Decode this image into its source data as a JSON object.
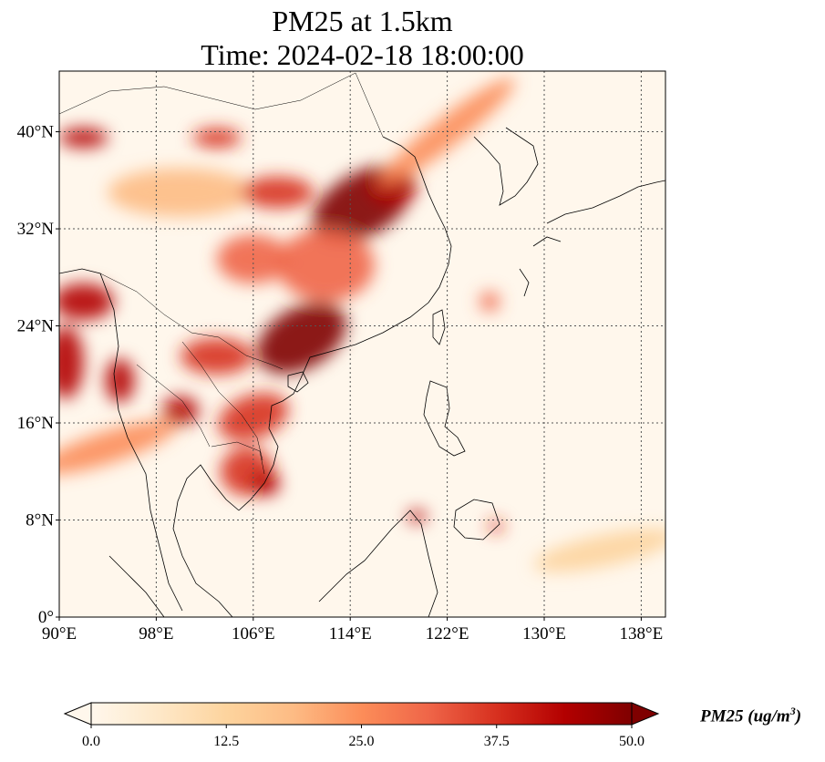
{
  "title": {
    "line1": "PM25 at 1.5km",
    "line2": "Time: 2024-02-18 18:00:00"
  },
  "map": {
    "extent": {
      "lon_min": 90,
      "lon_max": 140,
      "lat_min": 0,
      "lat_max": 45
    },
    "lon_ticks": [
      {
        "value": 90,
        "label": "90°E"
      },
      {
        "value": 98,
        "label": "98°E"
      },
      {
        "value": 106,
        "label": "106°E"
      },
      {
        "value": 114,
        "label": "114°E"
      },
      {
        "value": 122,
        "label": "122°E"
      },
      {
        "value": 130,
        "label": "130°E"
      },
      {
        "value": 138,
        "label": "138°E"
      }
    ],
    "lat_ticks": [
      {
        "value": 0,
        "label": "0°"
      },
      {
        "value": 8,
        "label": "8°N"
      },
      {
        "value": 16,
        "label": "16°N"
      },
      {
        "value": 24,
        "label": "24°N"
      },
      {
        "value": 32,
        "label": "32°N"
      },
      {
        "value": 40,
        "label": "40°N"
      }
    ],
    "gridlines": true
  },
  "colorbar": {
    "colormap": "OrRd",
    "colors": [
      "#fff7ec",
      "#fee8c8",
      "#fdd49e",
      "#fdbb84",
      "#fc8d59",
      "#ef6548",
      "#d7301f",
      "#b30000",
      "#7f0000"
    ],
    "ticks": [
      {
        "value": 0,
        "label": "0.0"
      },
      {
        "value": 12.5,
        "label": "12.5"
      },
      {
        "value": 25,
        "label": "25.0"
      },
      {
        "value": 37.5,
        "label": "37.5"
      },
      {
        "value": 50,
        "label": "50.0"
      }
    ],
    "min": 0,
    "max": 50,
    "extend": "both",
    "label_main": "PM25 (ug/m",
    "label_sup": "3",
    "label_end": ")"
  },
  "plumes": [
    {
      "name": "north-china-plain",
      "lon": 115,
      "lat": 34,
      "rlon": 4.5,
      "rlat": 2.6,
      "value": 48,
      "rot": -30
    },
    {
      "name": "shandong",
      "lon": 117.5,
      "lat": 35.5,
      "rlon": 2,
      "rlat": 1.5,
      "value": 45,
      "rot": 0
    },
    {
      "name": "sichuan-basin",
      "lon": 106,
      "lat": 29.5,
      "rlon": 3,
      "rlat": 2,
      "value": 30,
      "rot": 0
    },
    {
      "name": "central-china",
      "lon": 112,
      "lat": 29,
      "rlon": 4,
      "rlat": 3,
      "value": 32,
      "rot": 0
    },
    {
      "name": "guangxi-guangdong",
      "lon": 110,
      "lat": 23,
      "rlon": 4,
      "rlat": 2.5,
      "value": 47,
      "rot": -30
    },
    {
      "name": "yunnan-laos",
      "lon": 103,
      "lat": 21.5,
      "rlon": 3,
      "rlat": 1.5,
      "value": 38,
      "rot": 0
    },
    {
      "name": "myanmar-north",
      "lon": 92,
      "lat": 26,
      "rlon": 2.5,
      "rlat": 1.5,
      "value": 44,
      "rot": 0
    },
    {
      "name": "myanmar-west",
      "lon": 90.5,
      "lat": 21,
      "rlon": 1.5,
      "rlat": 3,
      "value": 42,
      "rot": 0
    },
    {
      "name": "myanmar-central",
      "lon": 95,
      "lat": 19.5,
      "rlon": 1.2,
      "rlat": 1.8,
      "value": 45,
      "rot": 0
    },
    {
      "name": "laos-vietnam",
      "lon": 106,
      "lat": 16.5,
      "rlon": 3,
      "rlat": 1.8,
      "value": 40,
      "rot": -20
    },
    {
      "name": "thailand-east",
      "lon": 100,
      "lat": 17,
      "rlon": 1.5,
      "rlat": 1.2,
      "value": 44,
      "rot": 0
    },
    {
      "name": "cambodia",
      "lon": 105.5,
      "lat": 12,
      "rlon": 2.2,
      "rlat": 2,
      "value": 36,
      "rot": 0
    },
    {
      "name": "mekong-delta",
      "lon": 107,
      "lat": 11,
      "rlon": 1.2,
      "rlat": 1,
      "value": 46,
      "rot": 0
    },
    {
      "name": "gobi-west",
      "lon": 92,
      "lat": 39.5,
      "rlon": 2,
      "rlat": 0.8,
      "value": 45,
      "rot": 0
    },
    {
      "name": "inner-mongolia",
      "lon": 103,
      "lat": 39.5,
      "rlon": 2,
      "rlat": 0.8,
      "value": 40,
      "rot": 0
    },
    {
      "name": "north-arc",
      "lon": 100,
      "lat": 35,
      "rlon": 6,
      "rlat": 2,
      "value": 18,
      "rot": 0
    },
    {
      "name": "loess-plateau",
      "lon": 108,
      "lat": 35,
      "rlon": 3,
      "rlat": 1.3,
      "value": 35,
      "rot": 0
    },
    {
      "name": "northeast-plume",
      "lon": 122,
      "lat": 40,
      "rlon": 7,
      "rlat": 1.2,
      "value": 22,
      "rot": -38
    },
    {
      "name": "west-plume",
      "lon": 94,
      "lat": 14,
      "rlon": 6,
      "rlat": 1.3,
      "value": 28,
      "rot": -18
    },
    {
      "name": "mindanao",
      "lon": 119.5,
      "lat": 8.3,
      "rlon": 0.8,
      "rlat": 0.5,
      "value": 42,
      "rot": 0
    },
    {
      "name": "philippines-east",
      "lon": 126,
      "lat": 7.5,
      "rlon": 0.6,
      "rlat": 0.5,
      "value": 35,
      "rot": 0
    },
    {
      "name": "taiwan-east",
      "lon": 125.5,
      "lat": 26,
      "rlon": 0.8,
      "rlat": 0.8,
      "value": 34,
      "rot": 0
    },
    {
      "name": "pacific-band",
      "lon": 135,
      "lat": 5.5,
      "rlon": 6,
      "rlat": 1.3,
      "value": 14,
      "rot": -12
    }
  ]
}
